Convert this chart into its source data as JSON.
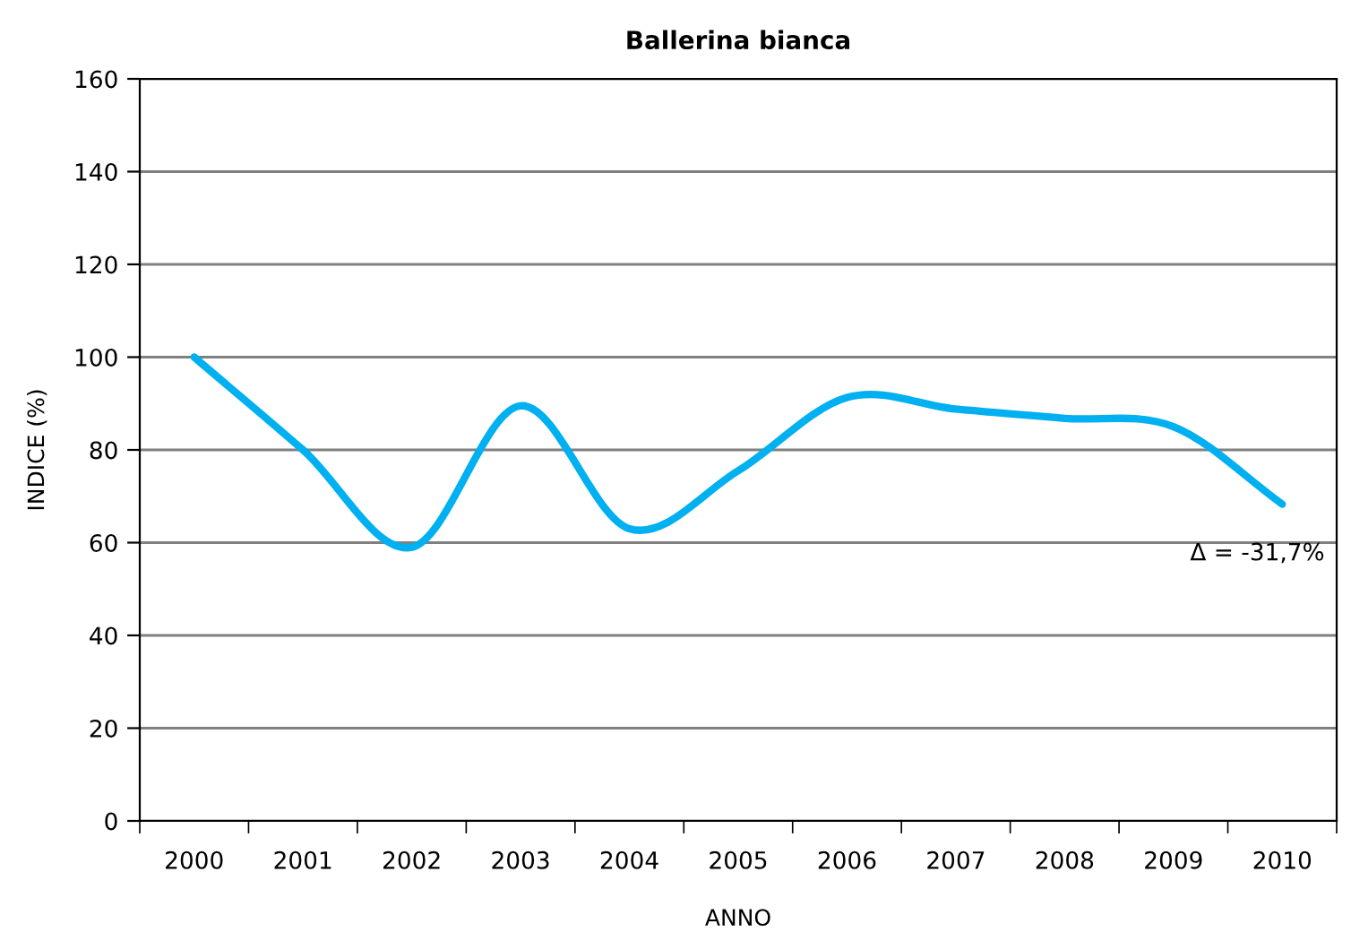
{
  "chart_data": {
    "type": "line",
    "title": "Ballerina bianca",
    "xlabel": "ANNO",
    "ylabel": "INDICE (%)",
    "categories": [
      "2000",
      "2001",
      "2002",
      "2003",
      "2004",
      "2005",
      "2006",
      "2007",
      "2008",
      "2009",
      "2010"
    ],
    "series": [
      {
        "color": "#00b0f0",
        "values": [
          100,
          80,
          59,
          89.5,
          63,
          75.5,
          91.3,
          88.8,
          86.8,
          85,
          68.3
        ]
      }
    ],
    "ylim": [
      0,
      160
    ],
    "yticks": [
      0,
      20,
      40,
      60,
      80,
      100,
      120,
      140,
      160
    ],
    "grid": "y",
    "legend": false,
    "marker": "none",
    "line_style": "solid",
    "annotations": [
      "Δ = -31,7%"
    ]
  }
}
